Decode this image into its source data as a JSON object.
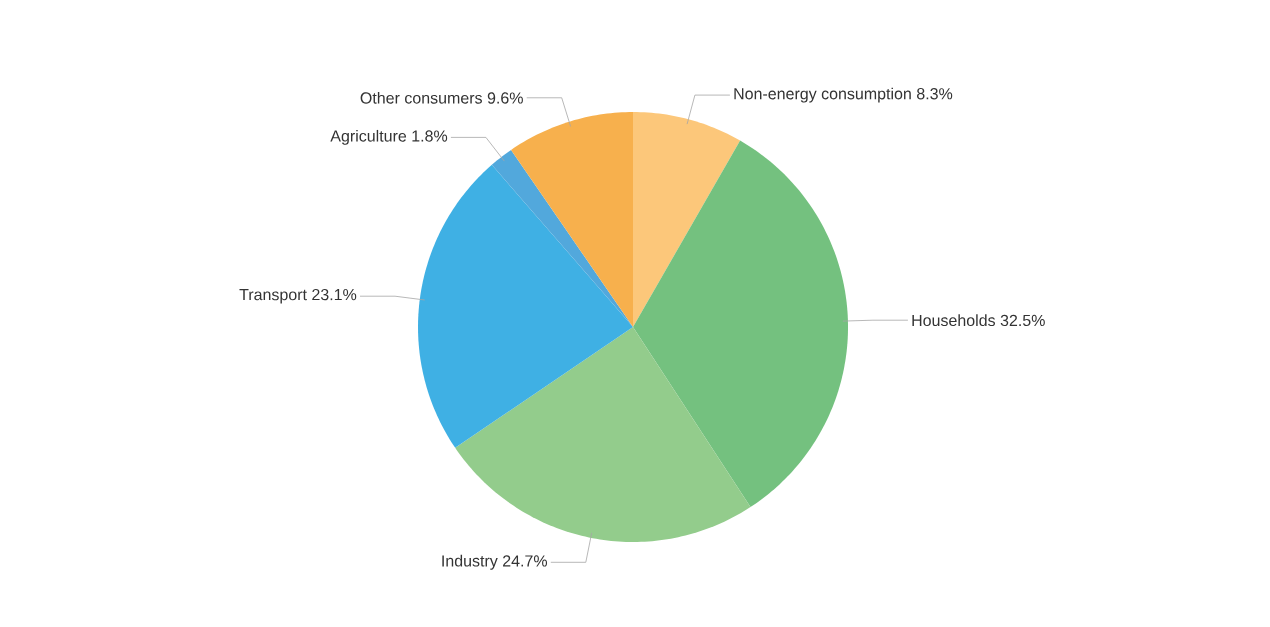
{
  "chart_data": {
    "type": "pie",
    "categories": [
      "Non-energy consumption",
      "Households",
      "Industry",
      "Transport",
      "Agriculture",
      "Other consumers"
    ],
    "values": [
      8.3,
      32.5,
      24.7,
      23.1,
      1.8,
      9.6
    ],
    "value_labels": [
      "8.3%",
      "32.5%",
      "24.7%",
      "23.1%",
      "1.8%",
      "9.6%"
    ],
    "colors": [
      "#fcc77a",
      "#74c17f",
      "#93cc8c",
      "#3fb0e4",
      "#52a8dc",
      "#f7b04d"
    ]
  }
}
